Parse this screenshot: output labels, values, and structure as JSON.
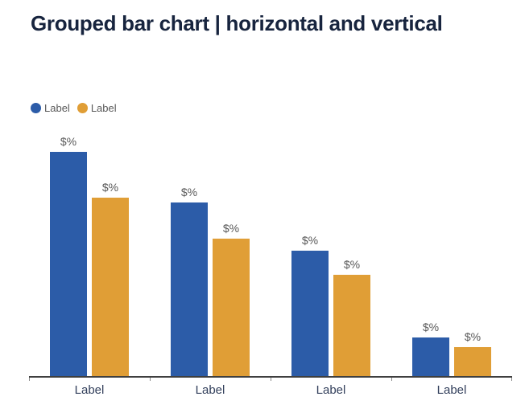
{
  "header": {
    "title": "Grouped bar chart | horizontal and vertical"
  },
  "legend": {
    "position": "top-left",
    "items": [
      {
        "label": "Label",
        "color": "#2C5CA8"
      },
      {
        "label": "Label",
        "color": "#E09E36"
      }
    ]
  },
  "chart_data": {
    "type": "bar",
    "orientation": "vertical",
    "grouped": true,
    "title": "Grouped bar chart | horizontal and vertical",
    "categories": [
      "Label",
      "Label",
      "Label",
      "Label"
    ],
    "series": [
      {
        "name": "Label",
        "color": "#2C5CA8",
        "values": [
          93,
          72,
          52,
          16
        ]
      },
      {
        "name": "Label",
        "color": "#E09E36",
        "values": [
          74,
          57,
          42,
          12
        ]
      }
    ],
    "value_label": "$%",
    "xlabel": "",
    "ylabel": "",
    "ylim": [
      0,
      100
    ],
    "grid": false,
    "legend_position": "top-left",
    "axis_line_color": "#3F3F3F",
    "value_label_color": "#595959",
    "category_label_color": "#33405C",
    "title_color": "#17243E"
  }
}
